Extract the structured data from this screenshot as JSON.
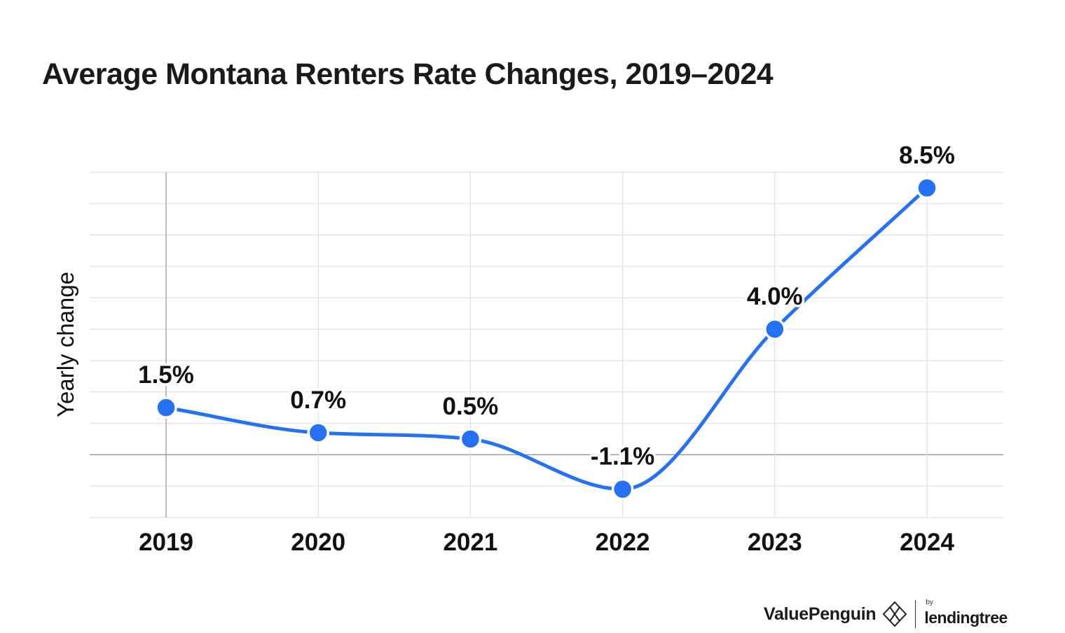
{
  "chart_data": {
    "type": "line",
    "title": "Average Montana Renters Rate Changes, 2019–2024",
    "ylabel": "Yearly change",
    "xlabel": "",
    "categories": [
      "2019",
      "2020",
      "2021",
      "2022",
      "2023",
      "2024"
    ],
    "values": [
      1.5,
      0.7,
      0.5,
      -1.1,
      4.0,
      8.5
    ],
    "labels": [
      "1.5%",
      "0.7%",
      "0.5%",
      "-1.1%",
      "4.0%",
      "8.5%"
    ],
    "ylim": [
      -2,
      9
    ],
    "grid": true,
    "line_color": "#2471f5"
  },
  "branding": {
    "primary": "ValuePenguin",
    "by": "by",
    "secondary": "lendingtree"
  }
}
